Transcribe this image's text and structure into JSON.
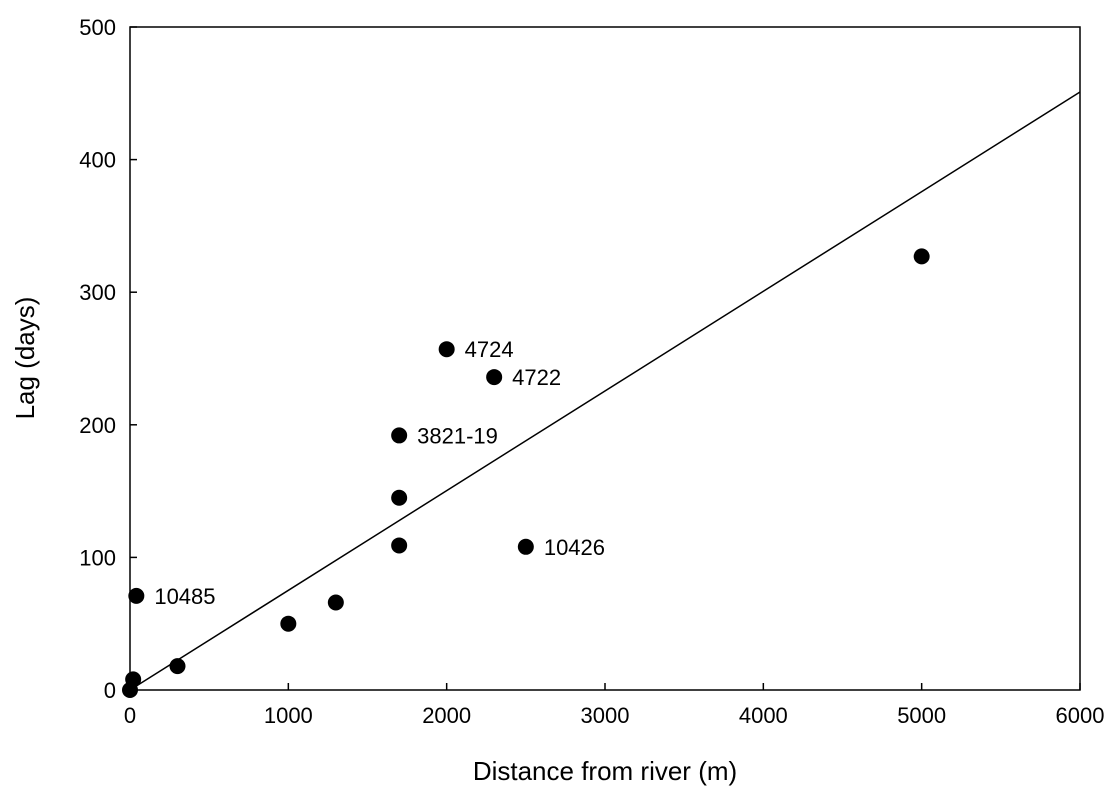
{
  "chart_data": {
    "type": "scatter",
    "title": "",
    "xlabel": "Distance from river (m)",
    "ylabel": "Lag (days)",
    "xlim": [
      0,
      6000
    ],
    "ylim": [
      0,
      500
    ],
    "xticks": [
      "0",
      "1000",
      "2000",
      "3000",
      "4000",
      "5000",
      "6000"
    ],
    "yticks": [
      "0",
      "100",
      "200",
      "300",
      "400",
      "500"
    ],
    "xtick_values": [
      0,
      1000,
      2000,
      3000,
      4000,
      5000,
      6000
    ],
    "ytick_values": [
      0,
      100,
      200,
      300,
      400,
      500
    ],
    "grid": false,
    "legend": "none",
    "marker_color": "#000000",
    "points": [
      {
        "x": 0,
        "y": 0,
        "label": ""
      },
      {
        "x": 20,
        "y": 8,
        "label": ""
      },
      {
        "x": 40,
        "y": 71,
        "label": "10485"
      },
      {
        "x": 300,
        "y": 18,
        "label": ""
      },
      {
        "x": 1000,
        "y": 50,
        "label": ""
      },
      {
        "x": 1300,
        "y": 66,
        "label": ""
      },
      {
        "x": 1700,
        "y": 109,
        "label": ""
      },
      {
        "x": 1700,
        "y": 145,
        "label": ""
      },
      {
        "x": 1700,
        "y": 192,
        "label": "3821-19"
      },
      {
        "x": 2000,
        "y": 257,
        "label": "4724"
      },
      {
        "x": 2300,
        "y": 236,
        "label": "4722"
      },
      {
        "x": 2500,
        "y": 108,
        "label": "10426"
      },
      {
        "x": 5000,
        "y": 327,
        "label": ""
      }
    ],
    "trendline": {
      "type": "linear",
      "x": [
        0,
        6000
      ],
      "y": [
        0,
        451
      ]
    }
  }
}
